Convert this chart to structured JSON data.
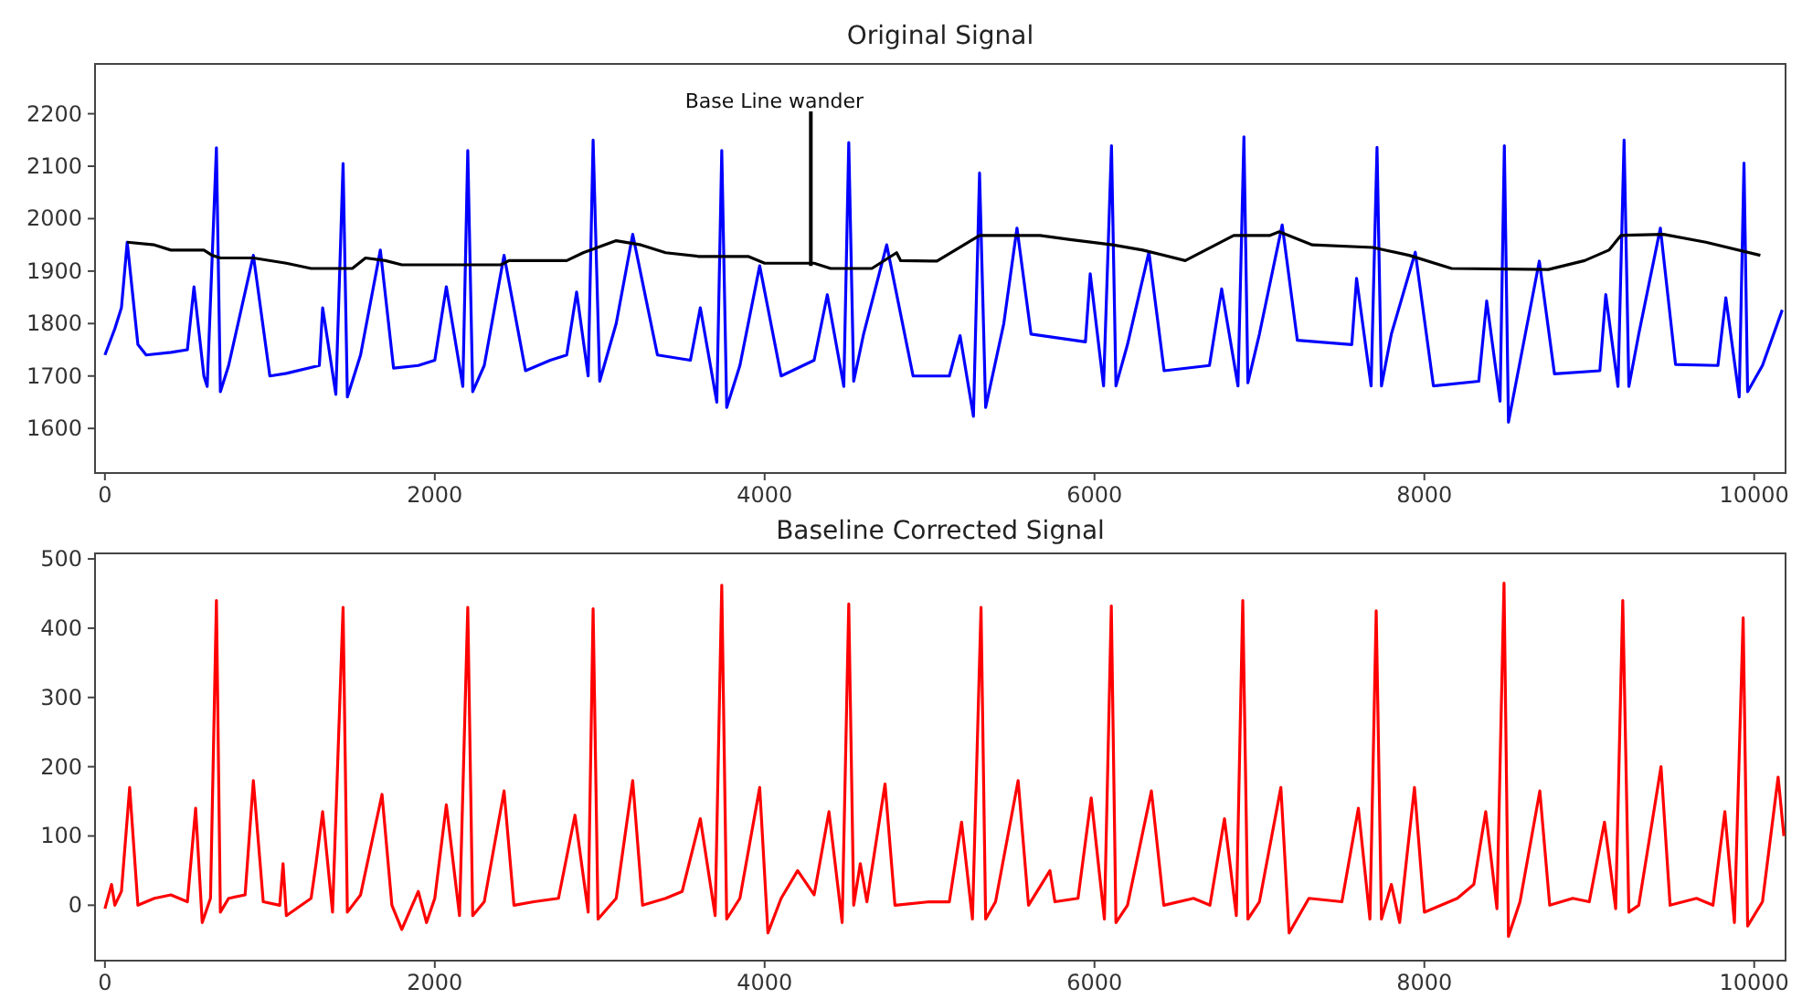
{
  "chart_data": [
    {
      "type": "line",
      "title": "Original Signal",
      "xlim": [
        -60,
        10190
      ],
      "ylim": [
        1515,
        2295
      ],
      "xticks": [
        0,
        2000,
        4000,
        6000,
        8000,
        10000
      ],
      "yticks": [
        1600,
        1700,
        1800,
        1900,
        2000,
        2100,
        2200
      ],
      "annotations": [
        {
          "text": "Base Line wander",
          "x": 4280,
          "y": 1910
        }
      ],
      "series": [
        {
          "color": "#0000ff",
          "x": [
            0,
            60,
            100,
            135,
            200,
            250,
            400,
            500,
            540,
            600,
            620,
            676,
            700,
            750,
            900,
            1000,
            1100,
            1300,
            1320,
            1400,
            1444,
            1470,
            1550,
            1670,
            1750,
            1900,
            2000,
            2070,
            2170,
            2200,
            2230,
            2300,
            2420,
            2550,
            2700,
            2800,
            2860,
            2930,
            2960,
            3000,
            3100,
            3200,
            3350,
            3550,
            3610,
            3710,
            3740,
            3770,
            3850,
            3970,
            4100,
            4300,
            4380,
            4480,
            4510,
            4540,
            4600,
            4740,
            4900,
            5120,
            5185,
            5266,
            5303,
            5340,
            5450,
            5530,
            5615,
            5945,
            5974,
            6055,
            6103,
            6130,
            6200,
            6330,
            6422,
            6697,
            6771,
            6870,
            6906,
            6930,
            7000,
            7138,
            7230,
            7560,
            7589,
            7677,
            7713,
            7740,
            7800,
            7945,
            8055,
            8330,
            8378,
            8459,
            8485,
            8510,
            8600,
            8697,
            8789,
            9064,
            9100,
            9174,
            9211,
            9240,
            9300,
            9431,
            9523,
            9780,
            9828,
            9909,
            9938,
            9960,
            10050,
            10170
          ],
          "values": [
            1740,
            1790,
            1830,
            1955,
            1760,
            1740,
            1745,
            1750,
            1870,
            1700,
            1680,
            2135,
            1670,
            1720,
            1930,
            1700,
            1705,
            1720,
            1830,
            1665,
            2105,
            1660,
            1740,
            1940,
            1715,
            1720,
            1730,
            1870,
            1680,
            2130,
            1670,
            1720,
            1930,
            1710,
            1730,
            1740,
            1860,
            1700,
            2150,
            1690,
            1800,
            1970,
            1740,
            1730,
            1830,
            1650,
            2130,
            1640,
            1720,
            1910,
            1700,
            1730,
            1855,
            1680,
            2145,
            1690,
            1780,
            1950,
            1700,
            1700,
            1777,
            1623,
            2087,
            1640,
            1800,
            1982,
            1780,
            1765,
            1895,
            1681,
            2139,
            1681,
            1760,
            1936,
            1710,
            1720,
            1866,
            1681,
            2156,
            1687,
            1780,
            1988,
            1768,
            1760,
            1886,
            1681,
            2136,
            1681,
            1780,
            1936,
            1681,
            1690,
            1843,
            1652,
            2139,
            1612,
            1760,
            1919,
            1704,
            1710,
            1855,
            1680,
            2150,
            1680,
            1780,
            1982,
            1722,
            1720,
            1849,
            1660,
            2106,
            1670,
            1720,
            1826
          ]
        },
        {
          "color": "#000000",
          "x": [
            135,
            300,
            400,
            600,
            650,
            700,
            900,
            1100,
            1250,
            1500,
            1580,
            1700,
            1800,
            2400,
            2450,
            2800,
            2900,
            3100,
            3250,
            3400,
            3600,
            3900,
            4000,
            4300,
            4400,
            4650,
            4800,
            4825,
            5045,
            5303,
            5670,
            5853,
            6110,
            6293,
            6550,
            6844,
            7064,
            7120,
            7321,
            7688,
            7908,
            8165,
            8752,
            8972,
            9119,
            9192,
            9450,
            9707,
            10037
          ],
          "values": [
            1955,
            1950,
            1940,
            1940,
            1930,
            1925,
            1925,
            1915,
            1905,
            1905,
            1925,
            1920,
            1912,
            1912,
            1920,
            1920,
            1935,
            1958,
            1950,
            1935,
            1928,
            1928,
            1915,
            1915,
            1905,
            1905,
            1935,
            1920,
            1919,
            1968,
            1968,
            1960,
            1950,
            1940,
            1920,
            1968,
            1968,
            1975,
            1950,
            1945,
            1930,
            1905,
            1903,
            1920,
            1940,
            1968,
            1970,
            1955,
            1930
          ]
        }
      ]
    },
    {
      "type": "line",
      "title": "Baseline Corrected Signal",
      "xlim": [
        -60,
        10190
      ],
      "ylim": [
        -80,
        508
      ],
      "xticks": [
        0,
        2000,
        4000,
        6000,
        8000,
        10000
      ],
      "yticks": [
        0,
        100,
        200,
        300,
        400,
        500
      ],
      "series": [
        {
          "color": "#ff0000",
          "x": [
            0,
            40,
            60,
            100,
            150,
            200,
            300,
            400,
            500,
            550,
            590,
            640,
            676,
            700,
            750,
            850,
            900,
            960,
            1060,
            1080,
            1100,
            1250,
            1280,
            1320,
            1380,
            1444,
            1470,
            1550,
            1680,
            1740,
            1800,
            1900,
            1950,
            2000,
            2070,
            2150,
            2200,
            2230,
            2300,
            2420,
            2480,
            2600,
            2750,
            2850,
            2930,
            2960,
            2990,
            3100,
            3200,
            3260,
            3400,
            3500,
            3610,
            3700,
            3740,
            3770,
            3850,
            3970,
            4020,
            4100,
            4200,
            4300,
            4390,
            4470,
            4510,
            4540,
            4580,
            4620,
            4730,
            4790,
            5000,
            5120,
            5194,
            5260,
            5312,
            5340,
            5400,
            5537,
            5600,
            5730,
            5760,
            5900,
            5980,
            6060,
            6102,
            6130,
            6200,
            6345,
            6420,
            6600,
            6700,
            6788,
            6860,
            6899,
            6930,
            7000,
            7130,
            7180,
            7300,
            7500,
            7600,
            7670,
            7708,
            7740,
            7800,
            7850,
            7940,
            8000,
            8200,
            8300,
            8372,
            8440,
            8483,
            8510,
            8580,
            8700,
            8760,
            8900,
            9000,
            9092,
            9160,
            9203,
            9240,
            9300,
            9435,
            9490,
            9650,
            9750,
            9822,
            9880,
            9933,
            9960,
            10050,
            10145,
            10180
          ],
          "values": [
            -5,
            30,
            0,
            20,
            170,
            0,
            10,
            15,
            5,
            140,
            -25,
            10,
            440,
            -10,
            10,
            15,
            180,
            5,
            0,
            60,
            -15,
            10,
            60,
            135,
            -10,
            430,
            -10,
            15,
            160,
            0,
            -35,
            20,
            -25,
            10,
            145,
            -15,
            430,
            -15,
            5,
            165,
            0,
            5,
            10,
            130,
            -10,
            428,
            -20,
            10,
            180,
            0,
            10,
            20,
            125,
            -15,
            462,
            -20,
            10,
            170,
            -40,
            10,
            50,
            15,
            135,
            -25,
            435,
            0,
            60,
            5,
            175,
            0,
            5,
            5,
            120,
            -20,
            430,
            -20,
            5,
            180,
            0,
            50,
            5,
            10,
            155,
            -20,
            432,
            -25,
            0,
            165,
            0,
            10,
            0,
            125,
            -15,
            440,
            -20,
            5,
            170,
            -40,
            10,
            5,
            140,
            -20,
            425,
            -20,
            30,
            -25,
            170,
            -10,
            10,
            30,
            135,
            -5,
            465,
            -45,
            5,
            165,
            0,
            10,
            5,
            120,
            -5,
            440,
            -10,
            0,
            200,
            0,
            10,
            0,
            135,
            -25,
            415,
            -30,
            5,
            185,
            100
          ]
        }
      ]
    }
  ]
}
